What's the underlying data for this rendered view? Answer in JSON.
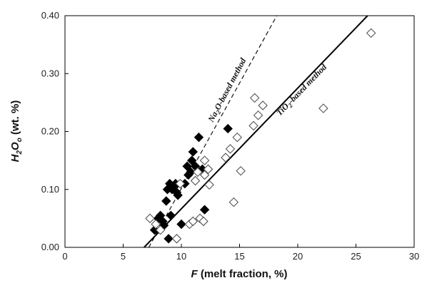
{
  "chart_data": {
    "type": "scatter",
    "xlabel_italic": "F",
    "xlabel_rest": " (melt fraction, %)",
    "ylabel_main": "H",
    "ylabel_sub1": "2",
    "ylabel_mid": "O",
    "ylabel_sub2": "o",
    "ylabel_rest": " (wt. %)",
    "xlim": [
      0,
      30
    ],
    "ylim": [
      0,
      0.4
    ],
    "xticks": [
      0,
      5,
      10,
      15,
      20,
      25,
      30
    ],
    "yticks": [
      0.0,
      0.1,
      0.2,
      0.3,
      0.4
    ],
    "ytick_labels": [
      "0.00",
      "0.10",
      "0.20",
      "0.30",
      "0.40"
    ],
    "grid": false,
    "series": [
      {
        "marker": "filled-diamond",
        "color": "#000000",
        "points": [
          [
            7.7,
            0.03
          ],
          [
            8.0,
            0.05
          ],
          [
            8.2,
            0.055
          ],
          [
            8.4,
            0.045
          ],
          [
            8.5,
            0.038
          ],
          [
            8.7,
            0.08
          ],
          [
            8.8,
            0.1
          ],
          [
            8.9,
            0.015
          ],
          [
            9.0,
            0.11
          ],
          [
            9.1,
            0.055
          ],
          [
            9.2,
            0.1
          ],
          [
            9.4,
            0.105
          ],
          [
            9.5,
            0.11
          ],
          [
            9.6,
            0.095
          ],
          [
            9.7,
            0.09
          ],
          [
            10.0,
            0.04
          ],
          [
            10.3,
            0.11
          ],
          [
            10.5,
            0.14
          ],
          [
            10.6,
            0.125
          ],
          [
            10.8,
            0.13
          ],
          [
            10.9,
            0.15
          ],
          [
            11.0,
            0.165
          ],
          [
            11.2,
            0.14
          ],
          [
            11.5,
            0.19
          ],
          [
            11.8,
            0.135
          ],
          [
            12.0,
            0.065
          ],
          [
            14.0,
            0.205
          ]
        ]
      },
      {
        "marker": "open-diamond",
        "color": "#000000",
        "points": [
          [
            7.3,
            0.05
          ],
          [
            7.8,
            0.04
          ],
          [
            8.2,
            0.03
          ],
          [
            9.6,
            0.015
          ],
          [
            9.9,
            0.11
          ],
          [
            10.7,
            0.04
          ],
          [
            11.0,
            0.045
          ],
          [
            11.2,
            0.115
          ],
          [
            11.4,
            0.13
          ],
          [
            11.6,
            0.05
          ],
          [
            11.9,
            0.045
          ],
          [
            12.0,
            0.15
          ],
          [
            12.0,
            0.125
          ],
          [
            12.3,
            0.135
          ],
          [
            12.4,
            0.108
          ],
          [
            13.8,
            0.155
          ],
          [
            14.2,
            0.17
          ],
          [
            14.5,
            0.078
          ],
          [
            14.8,
            0.19
          ],
          [
            15.1,
            0.132
          ],
          [
            16.2,
            0.21
          ],
          [
            16.3,
            0.258
          ],
          [
            16.6,
            0.228
          ],
          [
            17.0,
            0.245
          ],
          [
            22.2,
            0.24
          ],
          [
            26.3,
            0.37
          ]
        ]
      }
    ],
    "lines": [
      {
        "label_a": "Na",
        "label_sub": "2",
        "label_b": "O-based method",
        "style": "dashed",
        "x": [
          7.2,
          18.2
        ],
        "y": [
          0.0,
          0.4
        ]
      },
      {
        "label_a": "TiO",
        "label_sub": "2",
        "label_b": "-based method",
        "style": "solid",
        "x": [
          6.8,
          26.0
        ],
        "y": [
          0.0,
          0.4
        ]
      }
    ]
  }
}
